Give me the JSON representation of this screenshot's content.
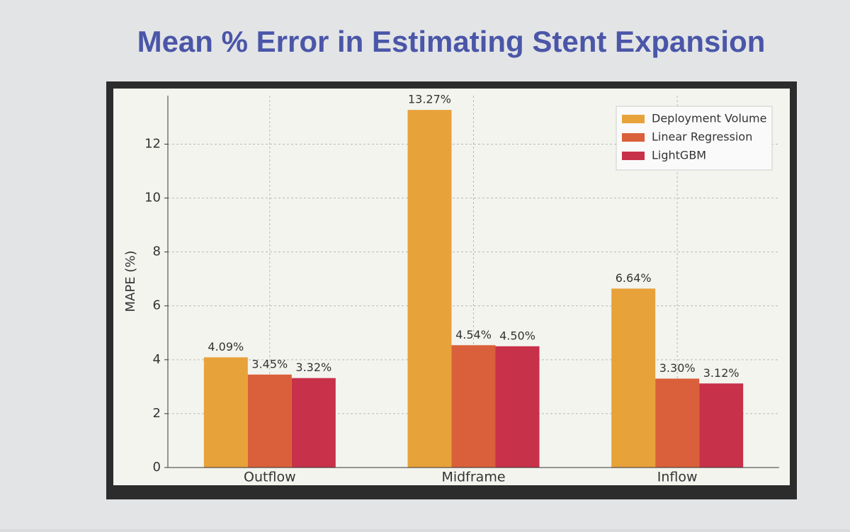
{
  "chart_data": {
    "type": "bar",
    "title": "Mean % Error in Estimating Stent Expansion",
    "y_label": "MAPE (%)",
    "categories": [
      "Outflow",
      "Midframe",
      "Inflow"
    ],
    "series": [
      {
        "name": "Deployment Volume",
        "color": "#e8a23a",
        "values": [
          4.09,
          13.27,
          6.64
        ],
        "value_labels": [
          "4.09%",
          "13.27%",
          "6.64%"
        ]
      },
      {
        "name": "Linear Regression",
        "color": "#d9603a",
        "values": [
          3.45,
          4.54,
          3.3
        ],
        "value_labels": [
          "3.45%",
          "4.54%",
          "3.30%"
        ]
      },
      {
        "name": "LightGBM",
        "color": "#c8314a",
        "values": [
          3.32,
          4.5,
          3.12
        ],
        "value_labels": [
          "3.32%",
          "4.50%",
          "3.12%"
        ]
      }
    ],
    "ylim": [
      0,
      13.8
    ],
    "yticks": [
      0,
      2,
      4,
      6,
      8,
      10,
      12
    ],
    "grid": true,
    "legend": "upper right"
  }
}
